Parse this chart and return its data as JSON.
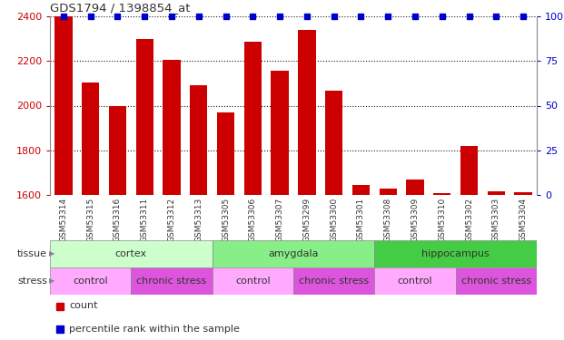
{
  "title": "GDS1794 / 1398854_at",
  "samples": [
    "GSM53314",
    "GSM53315",
    "GSM53316",
    "GSM53311",
    "GSM53312",
    "GSM53313",
    "GSM53305",
    "GSM53306",
    "GSM53307",
    "GSM53299",
    "GSM53300",
    "GSM53301",
    "GSM53308",
    "GSM53309",
    "GSM53310",
    "GSM53302",
    "GSM53303",
    "GSM53304"
  ],
  "counts_all": [
    2400,
    2105,
    2000,
    2300,
    2205,
    2090,
    1968,
    2285,
    2155,
    2340,
    2065,
    1645,
    1630,
    1670,
    1610,
    1820,
    1615,
    1612
  ],
  "percentile": [
    100,
    100,
    100,
    100,
    100,
    100,
    100,
    100,
    100,
    100,
    100,
    100,
    100,
    100,
    100,
    100,
    100,
    100
  ],
  "ylim_left": [
    1600,
    2400
  ],
  "ylim_right": [
    0,
    100
  ],
  "bar_color": "#cc0000",
  "dot_color": "#0000cc",
  "tissue_groups": [
    {
      "label": "cortex",
      "start": 0,
      "end": 6,
      "color": "#ccffcc"
    },
    {
      "label": "amygdala",
      "start": 6,
      "end": 12,
      "color": "#88ee88"
    },
    {
      "label": "hippocampus",
      "start": 12,
      "end": 18,
      "color": "#44cc44"
    }
  ],
  "stress_groups": [
    {
      "label": "control",
      "start": 0,
      "end": 3,
      "color": "#ffaaff"
    },
    {
      "label": "chronic stress",
      "start": 3,
      "end": 6,
      "color": "#dd55dd"
    },
    {
      "label": "control",
      "start": 6,
      "end": 9,
      "color": "#ffaaff"
    },
    {
      "label": "chronic stress",
      "start": 9,
      "end": 12,
      "color": "#dd55dd"
    },
    {
      "label": "control",
      "start": 12,
      "end": 15,
      "color": "#ffaaff"
    },
    {
      "label": "chronic stress",
      "start": 15,
      "end": 18,
      "color": "#dd55dd"
    }
  ],
  "xtick_bg_color": "#cccccc",
  "tick_label_color_left": "#cc0000",
  "tick_label_color_right": "#0000cc",
  "bg_color": "#ffffff",
  "grid_color": "#000000",
  "xtick_label_color": "#333333"
}
